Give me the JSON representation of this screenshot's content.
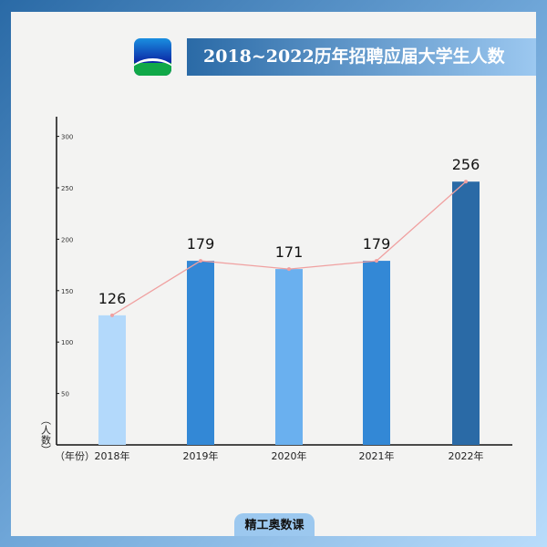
{
  "header": {
    "title": "2018~2022历年招聘应届大学生人数",
    "logo": "app-logo"
  },
  "footer": {
    "brand": "精工奥数课"
  },
  "chart_data": {
    "type": "bar",
    "title": "2018~2022历年招聘应届大学生人数",
    "xlabel": "（年份）",
    "ylabel": "（人数）",
    "categories": [
      "2018年",
      "2019年",
      "2020年",
      "2021年",
      "2022年"
    ],
    "values": [
      126,
      179,
      171,
      179,
      256
    ],
    "data_labels": [
      "126",
      "179",
      "171",
      "179",
      "256"
    ],
    "overlay_line": true,
    "yticks": [
      50,
      100,
      150,
      200,
      250,
      300
    ],
    "ylim": [
      0,
      320
    ],
    "grid": false,
    "colors": {
      "bars": [
        "#b3d9fb",
        "#3388d6",
        "#6ab0ef",
        "#3388d6",
        "#2a6aa6"
      ],
      "line": "#f0a0a0"
    }
  }
}
